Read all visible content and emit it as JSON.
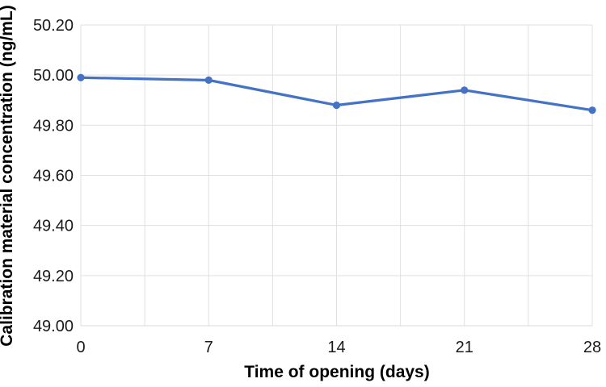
{
  "chart_data": {
    "type": "line",
    "title": "",
    "xlabel": "Time of opening (days)",
    "ylabel": "Calibration material concentration (ng/mL)",
    "x": [
      0,
      7,
      14,
      21,
      28
    ],
    "series": [
      {
        "name": "Calibration material concentration",
        "values": [
          49.99,
          49.98,
          49.88,
          49.94,
          49.86
        ]
      }
    ],
    "xlim": [
      0,
      28
    ],
    "ylim": [
      49.0,
      50.2
    ],
    "x_ticks": [
      "0",
      "7",
      "14",
      "21",
      "28"
    ],
    "x_tick_values": [
      0,
      7,
      14,
      21,
      28
    ],
    "y_ticks": [
      "50.20",
      "50.00",
      "49.80",
      "49.60",
      "49.40",
      "49.20",
      "49.00"
    ],
    "y_tick_values": [
      50.2,
      50.0,
      49.8,
      49.6,
      49.4,
      49.2,
      49.0
    ],
    "x_grid_step": 3.5,
    "grid": true,
    "legend": false,
    "colors": {
      "line": "#4472C4",
      "marker": "#4472C4",
      "grid": "#E0E0E0",
      "axis_line": "#D9D9D9",
      "text": "#1A1A1A",
      "background": "#FFFFFF"
    }
  }
}
